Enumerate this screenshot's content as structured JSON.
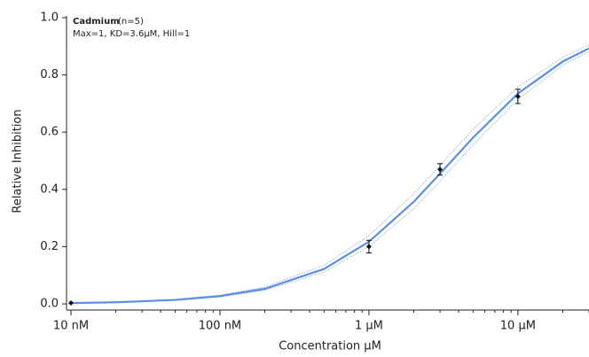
{
  "chart_data": {
    "type": "dose-response",
    "title": "Cadmium",
    "subtitle": "(n=5)",
    "annotation": "Max=1, KD=3.6µM, Hill=1",
    "x_label": "Concentration µM",
    "y_label": "Relative Inhibition",
    "log_x": true,
    "xlim": [
      0.01,
      30
    ],
    "ylim": [
      0,
      1
    ],
    "xticks": [
      {
        "value": 0.01,
        "label": "10 nM"
      },
      {
        "value": 0.1,
        "label": "100 nM"
      },
      {
        "value": 1,
        "label": "1 µM"
      },
      {
        "value": 10,
        "label": "10 µM"
      }
    ],
    "yticks": [
      {
        "value": 0,
        "label": "0.0"
      },
      0.2,
      0.4,
      0.6,
      0.8,
      {
        "value": 1,
        "label": "1.0"
      }
    ],
    "fit_color": "#5b8fe3",
    "band_color": "#7a9fe8",
    "point_color": "#111111",
    "fit": {
      "x": [
        0.01,
        0.02,
        0.05,
        0.1,
        0.2,
        0.5,
        1,
        2,
        3,
        5,
        10,
        20,
        30
      ],
      "values": [
        0.0028,
        0.0055,
        0.0137,
        0.027,
        0.0526,
        0.122,
        0.217,
        0.357,
        0.455,
        0.581,
        0.735,
        0.847,
        0.893
      ]
    },
    "upper_band": {
      "x": [
        0.01,
        0.02,
        0.05,
        0.1,
        0.2,
        0.5,
        1,
        2,
        3,
        5,
        10,
        20,
        30
      ],
      "values": [
        0.0031,
        0.0062,
        0.0154,
        0.0303,
        0.0588,
        0.135,
        0.238,
        0.385,
        0.484,
        0.61,
        0.758,
        0.862,
        0.904
      ]
    },
    "lower_band": {
      "x": [
        0.01,
        0.02,
        0.05,
        0.1,
        0.2,
        0.5,
        1,
        2,
        3,
        5,
        10,
        20,
        30
      ],
      "values": [
        0.0025,
        0.005,
        0.0123,
        0.0244,
        0.0476,
        0.111,
        0.2,
        0.333,
        0.429,
        0.556,
        0.714,
        0.833,
        0.882
      ]
    },
    "points": {
      "x": [
        0.01,
        1,
        3,
        10
      ],
      "values": [
        0.003,
        0.2,
        0.47,
        0.725
      ],
      "errors": [
        0,
        0.022,
        0.02,
        0.025
      ]
    }
  }
}
